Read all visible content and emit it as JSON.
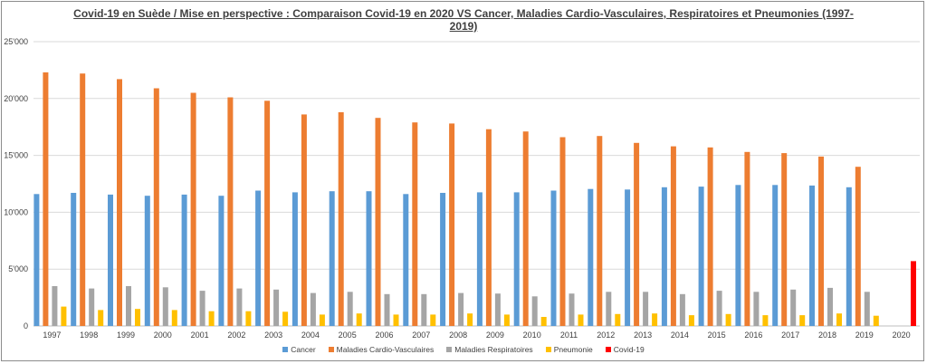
{
  "chart_data": {
    "type": "bar",
    "title_line1": "Covid-19 en Suède / Mise en perspective : Comparaison Covid-19 en 2020 VS Cancer, Maladies Cardio-Vasculaires, Respiratoires et Pneumonies (1997-",
    "title_line2": "2019)",
    "xlabel": "",
    "ylabel": "",
    "ylim": [
      0,
      25000
    ],
    "yticks": [
      "0",
      "5'000",
      "10'000",
      "15'000",
      "20'000",
      "25'000"
    ],
    "grid": true,
    "legend_position": "bottom",
    "categories": [
      "1997",
      "1998",
      "1999",
      "2000",
      "2001",
      "2002",
      "2003",
      "2004",
      "2005",
      "2006",
      "2007",
      "2008",
      "2009",
      "2010",
      "2011",
      "2012",
      "2013",
      "2014",
      "2015",
      "2016",
      "2017",
      "2018",
      "2019",
      "2020"
    ],
    "series": [
      {
        "name": "Cancer",
        "color": "#5b9bd5",
        "values": [
          11600,
          11700,
          11550,
          11450,
          11550,
          11450,
          11900,
          11750,
          11850,
          11850,
          11600,
          11700,
          11750,
          11750,
          11900,
          12050,
          12000,
          12200,
          12250,
          12400,
          12400,
          12350,
          12200,
          null
        ]
      },
      {
        "name": "Maladies Cardio-Vasculaires",
        "color": "#ed7d31",
        "values": [
          22300,
          22200,
          21700,
          20900,
          20500,
          20100,
          19800,
          18600,
          18800,
          18300,
          17900,
          17800,
          17300,
          17100,
          16600,
          16700,
          16100,
          15800,
          15700,
          15300,
          15200,
          14900,
          14000,
          null
        ]
      },
      {
        "name": "Maladies Respiratoires",
        "color": "#a5a5a5",
        "values": [
          3500,
          3300,
          3500,
          3400,
          3100,
          3300,
          3200,
          2900,
          3000,
          2800,
          2800,
          2900,
          2850,
          2600,
          2850,
          3000,
          3000,
          2800,
          3100,
          3000,
          3200,
          3350,
          3000,
          null
        ]
      },
      {
        "name": "Pneumonie",
        "color": "#ffc000",
        "values": [
          1700,
          1400,
          1500,
          1400,
          1300,
          1300,
          1250,
          1000,
          1100,
          1000,
          1000,
          1100,
          1000,
          800,
          1000,
          1050,
          1100,
          950,
          1050,
          950,
          950,
          1100,
          900,
          null
        ]
      },
      {
        "name": "Covid-19",
        "color": "#ff0000",
        "values": [
          null,
          null,
          null,
          null,
          null,
          null,
          null,
          null,
          null,
          null,
          null,
          null,
          null,
          null,
          null,
          null,
          null,
          null,
          null,
          null,
          null,
          null,
          null,
          5700
        ]
      }
    ]
  }
}
